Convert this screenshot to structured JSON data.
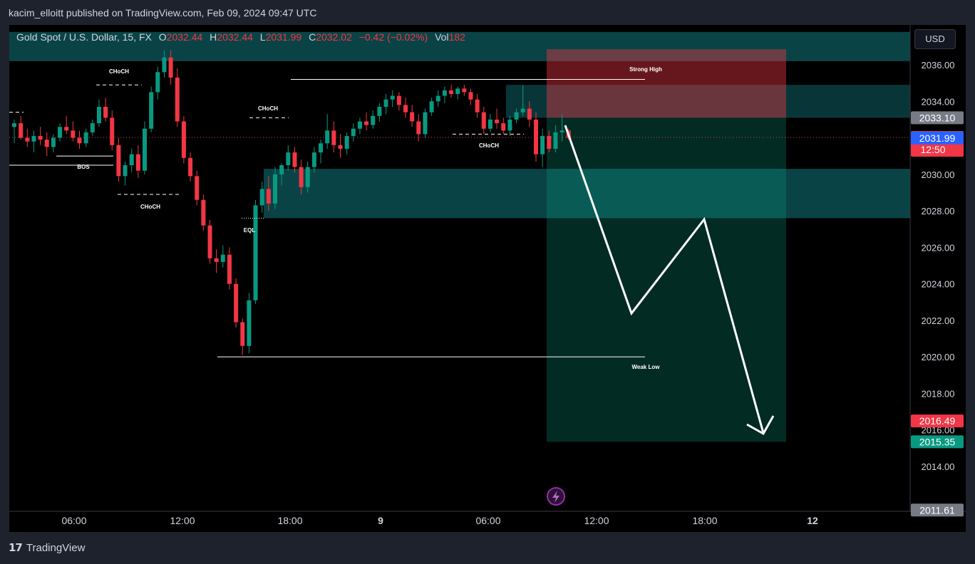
{
  "publisher": "kacim_elloitt published on TradingView.com, Feb 09, 2024 09:47 UTC",
  "legend": {
    "symbol": "Gold Spot / U.S. Dollar, 15, FX",
    "o_label": "O",
    "o": "2032.44",
    "h_label": "H",
    "h": "2032.44",
    "l_label": "L",
    "l": "2031.99",
    "c_label": "C",
    "c": "2032.02",
    "change": "−0.42 (−0.02%)",
    "vol_label": "Vol",
    "vol": "182"
  },
  "currency_button": "USD",
  "footer_brand": "TradingView",
  "chart_data": {
    "type": "candlestick",
    "symbol": "Gold Spot / U.S. Dollar",
    "y_ticks": [
      "2036.00",
      "2034.00",
      "2032.00",
      "2030.00",
      "2028.00",
      "2026.00",
      "2024.00",
      "2022.00",
      "2020.00",
      "2018.00",
      "2016.00",
      "2014.00"
    ],
    "x_ticks": [
      "06:00",
      "12:00",
      "18:00",
      "9",
      "06:00",
      "12:00",
      "18:00",
      "12"
    ],
    "price_labels": [
      {
        "text": "2033.10",
        "value": 2033.1,
        "color": "#787b86"
      },
      {
        "text": "2032.02",
        "value": 2032.02,
        "color": "#f23645",
        "sub": "12:50"
      },
      {
        "text": "2031.99",
        "value": 2031.99,
        "color": "#2962ff"
      },
      {
        "text": "2016.49",
        "value": 2016.49,
        "color": "#f23645"
      },
      {
        "text": "2015.35",
        "value": 2015.35,
        "color": "#089981"
      },
      {
        "text": "2011.61",
        "value": 2011.61,
        "color": "#787b86"
      }
    ],
    "annotations": [
      {
        "text": "CHoCH"
      },
      {
        "text": "BOS"
      },
      {
        "text": "CHoCH"
      },
      {
        "text": "CHoCH"
      },
      {
        "text": "EQL"
      },
      {
        "text": "CHoCH"
      },
      {
        "text": "Strong High"
      },
      {
        "text": "Weak Low"
      }
    ],
    "position_short": {
      "entry": 2033.1,
      "stop": 2036.85,
      "target": 2015.35
    },
    "candles": [
      [
        2032.6,
        2033.0,
        2031.7,
        2032.8
      ],
      [
        2032.8,
        2033.2,
        2031.9,
        2032.0
      ],
      [
        2032.0,
        2032.5,
        2031.5,
        2031.8
      ],
      [
        2031.8,
        2032.4,
        2031.2,
        2032.1
      ],
      [
        2032.1,
        2032.6,
        2031.6,
        2031.9
      ],
      [
        2031.9,
        2032.3,
        2031.0,
        2031.5
      ],
      [
        2031.5,
        2032.2,
        2031.2,
        2032.0
      ],
      [
        2032.0,
        2032.8,
        2031.8,
        2032.6
      ],
      [
        2032.6,
        2033.2,
        2032.2,
        2032.4
      ],
      [
        2032.4,
        2032.9,
        2031.8,
        2032.0
      ],
      [
        2032.0,
        2032.4,
        2031.4,
        2031.7
      ],
      [
        2031.7,
        2032.5,
        2031.5,
        2032.3
      ],
      [
        2032.3,
        2033.0,
        2032.1,
        2032.8
      ],
      [
        2032.8,
        2034.1,
        2032.6,
        2033.7
      ],
      [
        2033.7,
        2034.2,
        2032.9,
        2033.1
      ],
      [
        2033.1,
        2033.5,
        2031.3,
        2031.6
      ],
      [
        2031.6,
        2032.0,
        2029.6,
        2029.9
      ],
      [
        2029.9,
        2030.7,
        2029.4,
        2030.5
      ],
      [
        2030.5,
        2031.4,
        2030.1,
        2031.1
      ],
      [
        2031.1,
        2031.6,
        2029.8,
        2030.2
      ],
      [
        2030.2,
        2032.9,
        2030.0,
        2032.5
      ],
      [
        2032.5,
        2034.8,
        2032.3,
        2034.5
      ],
      [
        2034.5,
        2035.9,
        2034.1,
        2035.6
      ],
      [
        2035.6,
        2036.8,
        2035.3,
        2036.4
      ],
      [
        2036.4,
        2036.8,
        2034.9,
        2035.3
      ],
      [
        2035.3,
        2035.8,
        2032.6,
        2032.9
      ],
      [
        2032.9,
        2033.2,
        2030.6,
        2030.9
      ],
      [
        2030.9,
        2031.2,
        2029.6,
        2029.9
      ],
      [
        2029.9,
        2030.2,
        2028.3,
        2028.6
      ],
      [
        2028.6,
        2028.9,
        2026.9,
        2027.2
      ],
      [
        2027.2,
        2027.5,
        2025.1,
        2025.4
      ],
      [
        2025.4,
        2025.9,
        2024.6,
        2025.2
      ],
      [
        2025.2,
        2026.1,
        2024.9,
        2025.6
      ],
      [
        2025.6,
        2026.0,
        2023.7,
        2024.0
      ],
      [
        2024.0,
        2024.3,
        2021.6,
        2021.9
      ],
      [
        2021.9,
        2022.1,
        2020.1,
        2020.6
      ],
      [
        2020.6,
        2023.5,
        2020.2,
        2023.1
      ],
      [
        2023.1,
        2028.6,
        2022.9,
        2028.3
      ],
      [
        2028.3,
        2029.6,
        2027.9,
        2029.2
      ],
      [
        2029.2,
        2029.9,
        2028.0,
        2028.4
      ],
      [
        2028.4,
        2030.4,
        2028.1,
        2030.0
      ],
      [
        2030.0,
        2030.6,
        2029.4,
        2030.5
      ],
      [
        2030.5,
        2031.6,
        2030.2,
        2031.2
      ],
      [
        2031.2,
        2031.5,
        2030.1,
        2030.4
      ],
      [
        2030.4,
        2030.8,
        2028.9,
        2029.3
      ],
      [
        2029.3,
        2030.7,
        2029.0,
        2030.4
      ],
      [
        2030.4,
        2031.5,
        2030.1,
        2031.2
      ],
      [
        2031.2,
        2031.9,
        2030.6,
        2031.7
      ],
      [
        2031.7,
        2033.3,
        2031.4,
        2032.4
      ],
      [
        2032.4,
        2032.9,
        2031.2,
        2031.6
      ],
      [
        2031.6,
        2032.2,
        2030.9,
        2031.4
      ],
      [
        2031.4,
        2032.3,
        2031.1,
        2032.1
      ],
      [
        2032.1,
        2032.8,
        2031.8,
        2032.5
      ],
      [
        2032.5,
        2033.1,
        2032.2,
        2032.9
      ],
      [
        2032.9,
        2033.4,
        2032.4,
        2032.7
      ],
      [
        2032.7,
        2033.5,
        2032.5,
        2033.2
      ],
      [
        2033.2,
        2033.9,
        2032.9,
        2033.7
      ],
      [
        2033.7,
        2034.4,
        2033.3,
        2034.1
      ],
      [
        2034.1,
        2034.6,
        2033.7,
        2034.3
      ],
      [
        2034.3,
        2034.5,
        2033.5,
        2033.8
      ],
      [
        2033.8,
        2034.2,
        2033.1,
        2033.4
      ],
      [
        2033.4,
        2033.8,
        2032.6,
        2032.9
      ],
      [
        2032.9,
        2033.3,
        2031.8,
        2032.2
      ],
      [
        2032.2,
        2033.6,
        2032.0,
        2033.4
      ],
      [
        2033.4,
        2034.2,
        2033.2,
        2034.0
      ],
      [
        2034.0,
        2034.6,
        2033.7,
        2034.3
      ],
      [
        2034.3,
        2034.8,
        2033.9,
        2034.6
      ],
      [
        2034.6,
        2034.9,
        2034.2,
        2034.4
      ],
      [
        2034.4,
        2034.8,
        2034.1,
        2034.7
      ],
      [
        2034.7,
        2034.9,
        2034.3,
        2034.5
      ],
      [
        2034.5,
        2034.7,
        2033.8,
        2034.1
      ],
      [
        2034.1,
        2034.4,
        2033.1,
        2033.4
      ],
      [
        2033.4,
        2033.7,
        2032.2,
        2032.5
      ],
      [
        2032.5,
        2033.3,
        2032.3,
        2033.0
      ],
      [
        2033.0,
        2033.6,
        2032.5,
        2032.8
      ],
      [
        2032.8,
        2033.1,
        2032.2,
        2032.4
      ],
      [
        2032.4,
        2033.2,
        2032.1,
        2033.0
      ],
      [
        2033.0,
        2033.6,
        2032.8,
        2033.4
      ],
      [
        2033.4,
        2034.9,
        2033.2,
        2033.6
      ],
      [
        2033.6,
        2034.0,
        2032.6,
        2033.0
      ],
      [
        2033.0,
        2033.4,
        2030.7,
        2031.1
      ],
      [
        2031.1,
        2032.5,
        2030.4,
        2032.1
      ],
      [
        2032.1,
        2032.4,
        2031.2,
        2031.4
      ],
      [
        2031.4,
        2032.7,
        2031.2,
        2032.3
      ],
      [
        2032.3,
        2033.3,
        2031.8,
        2032.4
      ],
      [
        2032.4,
        2032.5,
        2031.9,
        2032.0
      ]
    ]
  }
}
